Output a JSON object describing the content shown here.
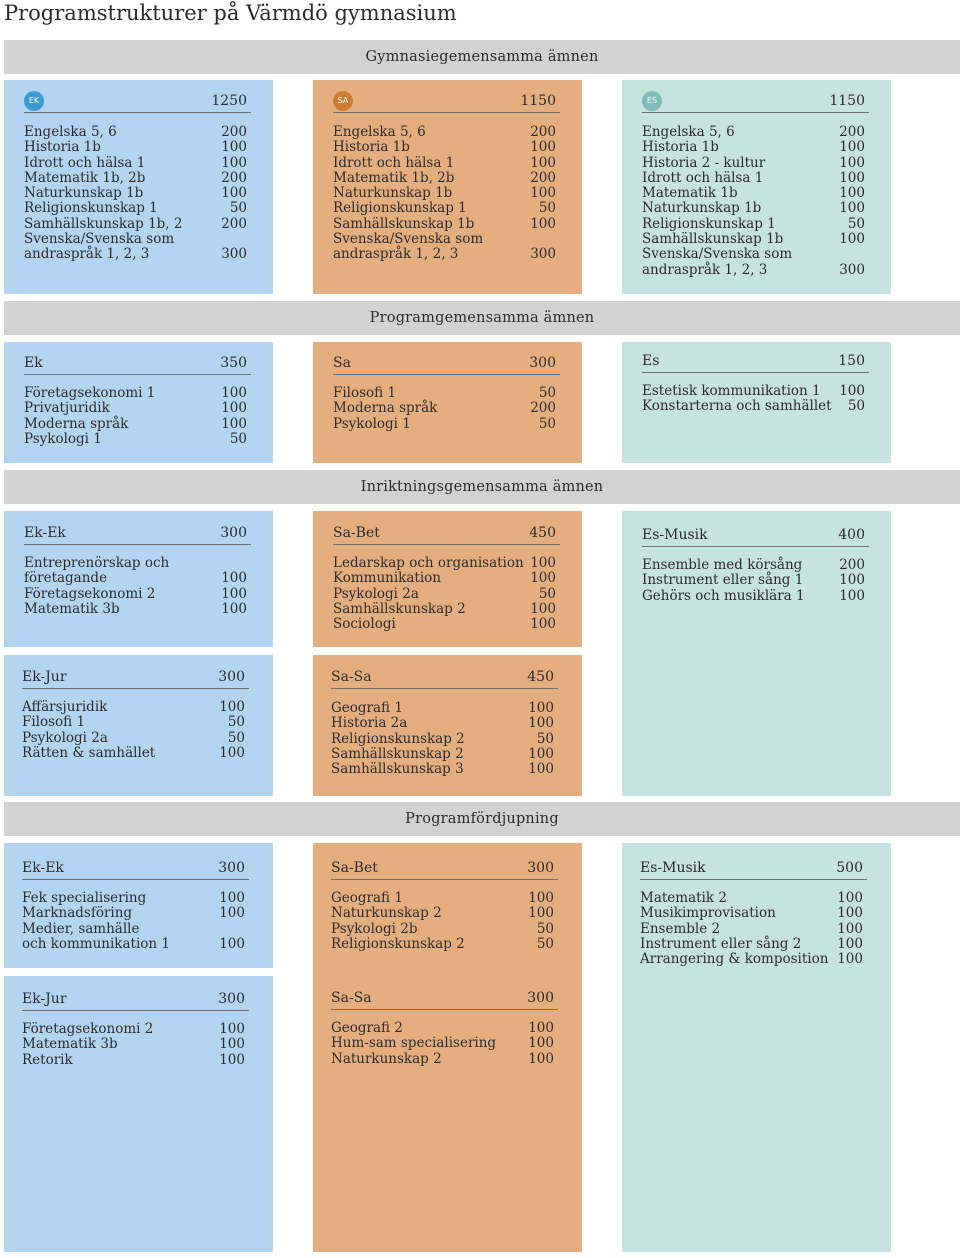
{
  "title": "Programstrukturer på Värmdö gymnasium",
  "sections": {
    "gymnasie": "Gymnasiegemensamma ämnen",
    "program": "Programgemensamma ämnen",
    "inriktning": "Inriktningsgemensamma ämnen",
    "fordjupning": "Programfördjupning"
  },
  "gym": {
    "ek": {
      "badge": "EK",
      "total": "1250",
      "items": [
        {
          "name": "Engelska 5, 6",
          "pts": "200"
        },
        {
          "name": "Historia 1b",
          "pts": "100"
        },
        {
          "name": "Idrott och hälsa 1",
          "pts": "100"
        },
        {
          "name": "Matematik 1b, 2b",
          "pts": "200"
        },
        {
          "name": "Naturkunskap 1b",
          "pts": "100"
        },
        {
          "name": "Religionskunskap 1",
          "pts": "50"
        },
        {
          "name": "Samhällskunskap 1b, 2",
          "pts": "200"
        },
        {
          "name": "Svenska/Svenska som",
          "pts": ""
        },
        {
          "name": "andraspråk 1, 2, 3",
          "pts": "300"
        }
      ]
    },
    "sa": {
      "badge": "SA",
      "total": "1150",
      "items": [
        {
          "name": "Engelska 5, 6",
          "pts": "200"
        },
        {
          "name": "Historia 1b",
          "pts": "100"
        },
        {
          "name": "Idrott och hälsa 1",
          "pts": "100"
        },
        {
          "name": "Matematik 1b, 2b",
          "pts": "200"
        },
        {
          "name": "Naturkunskap 1b",
          "pts": "100"
        },
        {
          "name": "Religionskunskap 1",
          "pts": "50"
        },
        {
          "name": "Samhällskunskap 1b",
          "pts": "100"
        },
        {
          "name": "Svenska/Svenska som",
          "pts": ""
        },
        {
          "name": "andraspråk 1, 2, 3",
          "pts": "300"
        }
      ]
    },
    "es": {
      "badge": "ES",
      "total": "1150",
      "items": [
        {
          "name": "Engelska 5, 6",
          "pts": "200"
        },
        {
          "name": "Historia 1b",
          "pts": "100"
        },
        {
          "name": "Historia 2 - kultur",
          "pts": "100"
        },
        {
          "name": "Idrott och hälsa 1",
          "pts": "100"
        },
        {
          "name": "Matematik 1b",
          "pts": "100"
        },
        {
          "name": "Naturkunskap 1b",
          "pts": "100"
        },
        {
          "name": "Religionskunskap 1",
          "pts": "50"
        },
        {
          "name": "Samhällskunskap 1b",
          "pts": "100"
        },
        {
          "name": "Svenska/Svenska som",
          "pts": ""
        },
        {
          "name": "andraspråk 1, 2, 3",
          "pts": "300"
        }
      ]
    }
  },
  "prog": {
    "ek": {
      "name": "Ek",
      "total": "350",
      "items": [
        {
          "name": "Företagsekonomi 1",
          "pts": "100"
        },
        {
          "name": "Privatjuridik",
          "pts": "100"
        },
        {
          "name": "Moderna språk",
          "pts": "100"
        },
        {
          "name": "Psykologi 1",
          "pts": "50"
        }
      ]
    },
    "sa": {
      "name": "Sa",
      "total": "300",
      "items": [
        {
          "name": "Filosofi 1",
          "pts": "50"
        },
        {
          "name": "Moderna språk",
          "pts": "200"
        },
        {
          "name": "Psykologi 1",
          "pts": "50"
        }
      ]
    },
    "es": {
      "name": "Es",
      "total": "150",
      "items": [
        {
          "name": "Estetisk kommunikation 1",
          "pts": "100"
        },
        {
          "name": "Konstarterna och samhället",
          "pts": "50"
        }
      ]
    }
  },
  "inr": {
    "ek_ek": {
      "name": "Ek-Ek",
      "total": "300",
      "items": [
        {
          "name": "Entreprenörskap och",
          "pts": ""
        },
        {
          "name": "företagande",
          "pts": "100"
        },
        {
          "name": "Företagsekonomi 2",
          "pts": "100"
        },
        {
          "name": "Matematik 3b",
          "pts": "100"
        }
      ]
    },
    "ek_jur": {
      "name": "Ek-Jur",
      "total": "300",
      "items": [
        {
          "name": "Affärsjuridik",
          "pts": "100"
        },
        {
          "name": "Filosofi 1",
          "pts": "50"
        },
        {
          "name": "Psykologi 2a",
          "pts": "50"
        },
        {
          "name": "Rätten & samhället",
          "pts": "100"
        }
      ]
    },
    "sa_bet": {
      "name": "Sa-Bet",
      "total": "450",
      "items": [
        {
          "name": "Ledarskap och organisation",
          "pts": "100"
        },
        {
          "name": "Kommunikation",
          "pts": "100"
        },
        {
          "name": "Psykologi 2a",
          "pts": "50"
        },
        {
          "name": "Samhällskunskap 2",
          "pts": "100"
        },
        {
          "name": "Sociologi",
          "pts": "100"
        }
      ]
    },
    "sa_sa": {
      "name": "Sa-Sa",
      "total": "450",
      "items": [
        {
          "name": "Geografi 1",
          "pts": "100"
        },
        {
          "name": "Historia 2a",
          "pts": "100"
        },
        {
          "name": "Religionskunskap 2",
          "pts": "50"
        },
        {
          "name": "Samhällskunskap 2",
          "pts": "100"
        },
        {
          "name": "Samhällskunskap 3",
          "pts": "100"
        }
      ]
    },
    "es_musik": {
      "name": "Es-Musik",
      "total": "400",
      "items": [
        {
          "name": "Ensemble med körsång",
          "pts": "200"
        },
        {
          "name": "Instrument eller sång 1",
          "pts": "100"
        },
        {
          "name": "Gehörs och musiklära 1",
          "pts": "100"
        }
      ]
    }
  },
  "ford": {
    "ek_ek": {
      "name": "Ek-Ek",
      "total": "300",
      "items": [
        {
          "name": "Fek specialisering",
          "pts": "100"
        },
        {
          "name": "Marknadsföring",
          "pts": "100"
        },
        {
          "name": "Medier, samhälle",
          "pts": ""
        },
        {
          "name": "och kommunikation 1",
          "pts": "100"
        }
      ]
    },
    "ek_jur": {
      "name": "Ek-Jur",
      "total": "300",
      "items": [
        {
          "name": "Företagsekonomi 2",
          "pts": "100"
        },
        {
          "name": "Matematik 3b",
          "pts": "100"
        },
        {
          "name": "Retorik",
          "pts": "100"
        }
      ]
    },
    "sa_bet": {
      "name": "Sa-Bet",
      "total": "300",
      "items": [
        {
          "name": "Geografi 1",
          "pts": "100"
        },
        {
          "name": "Naturkunskap 2",
          "pts": "100"
        },
        {
          "name": "Psykologi 2b",
          "pts": "50"
        },
        {
          "name": "Religionskunskap 2",
          "pts": "50"
        }
      ]
    },
    "sa_sa": {
      "name": "Sa-Sa",
      "total": "300",
      "items": [
        {
          "name": "Geografi 2",
          "pts": "100"
        },
        {
          "name": "Hum-sam specialisering",
          "pts": "100"
        },
        {
          "name": "Naturkunskap 2",
          "pts": "100"
        }
      ]
    },
    "es_musik": {
      "name": "Es-Musik",
      "total": "500",
      "items": [
        {
          "name": "Matematik 2",
          "pts": "100"
        },
        {
          "name": "Musikimprovisation",
          "pts": "100"
        },
        {
          "name": "Ensemble 2",
          "pts": "100"
        },
        {
          "name": "Instrument eller sång 2",
          "pts": "100"
        },
        {
          "name": "Arrangering & komposition",
          "pts": "100"
        }
      ]
    }
  }
}
